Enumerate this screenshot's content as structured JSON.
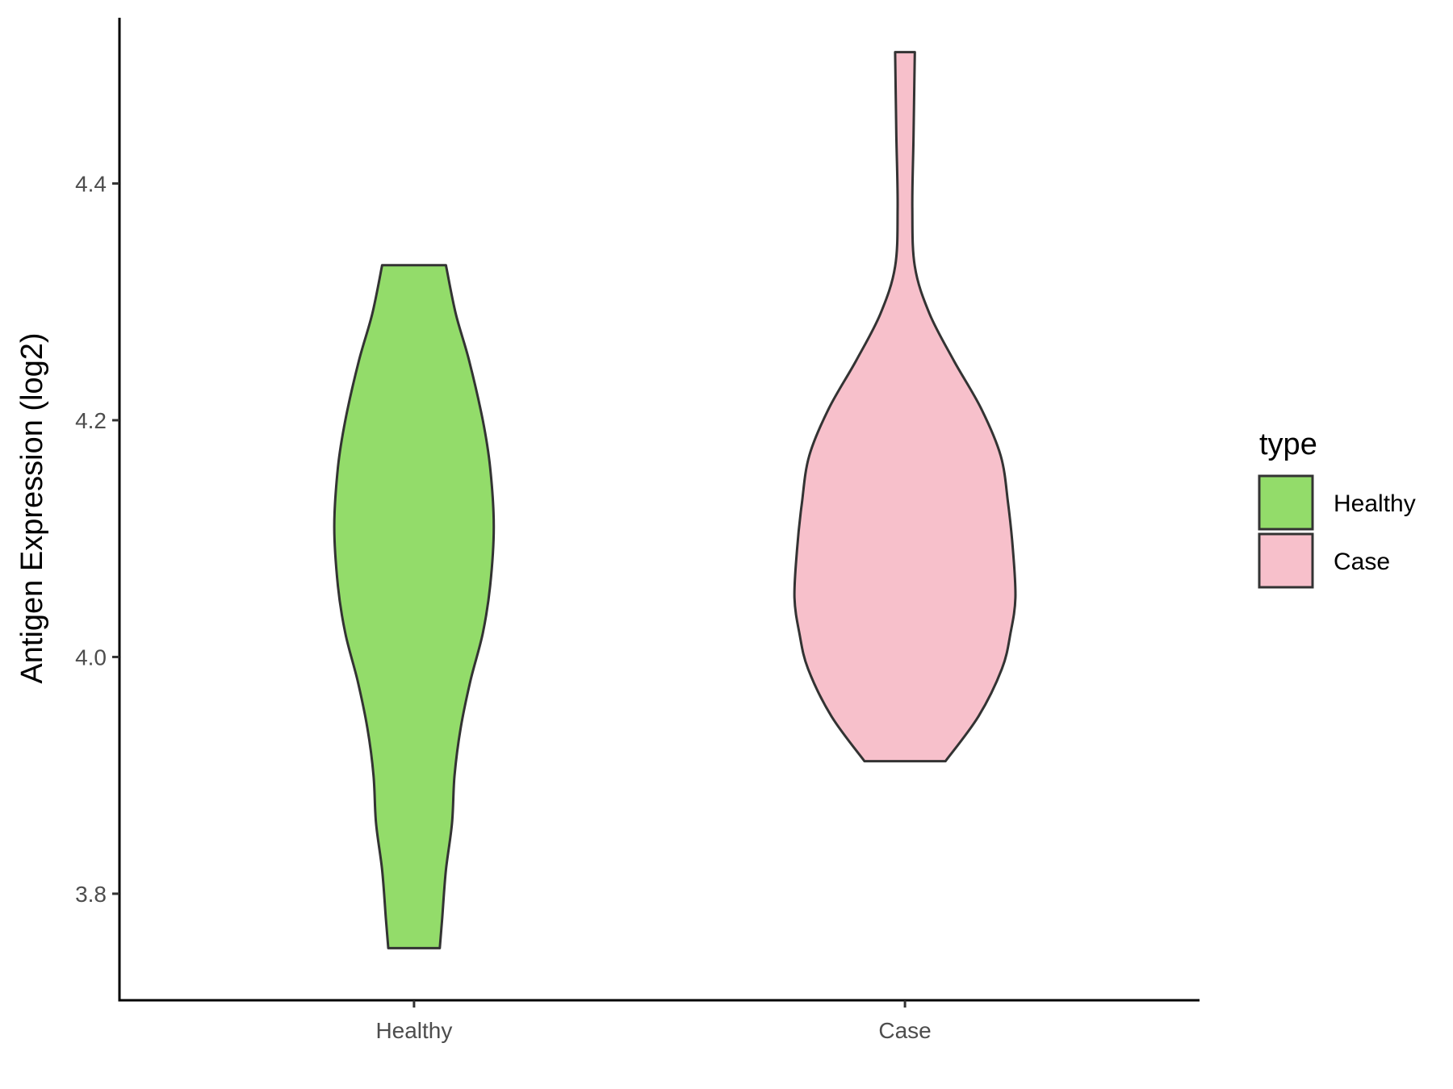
{
  "chart_data": {
    "type": "violin",
    "ylabel": "Antigen Expression (log2)",
    "xlabel": "",
    "ylim": [
      3.71,
      4.54
    ],
    "yticks": [
      3.8,
      4.0,
      4.2,
      4.4
    ],
    "ytick_labels": [
      "3.8",
      "4.0",
      "4.2",
      "4.4"
    ],
    "categories": [
      "Healthy",
      "Case"
    ],
    "legend": {
      "title": "type",
      "position": "right",
      "items": [
        {
          "label": "Healthy",
          "color": "#93dc6a"
        },
        {
          "label": "Case",
          "color": "#f7c0cb"
        }
      ]
    },
    "grid": false,
    "series": [
      {
        "category": "Healthy",
        "color": "#93dc6a",
        "min": 3.754,
        "max": 4.331,
        "density_profile": [
          {
            "y": 3.754,
            "half_width": 0.105
          },
          {
            "y": 3.78,
            "half_width": 0.115
          },
          {
            "y": 3.82,
            "half_width": 0.13
          },
          {
            "y": 3.86,
            "half_width": 0.155
          },
          {
            "y": 3.9,
            "half_width": 0.165
          },
          {
            "y": 3.94,
            "half_width": 0.19
          },
          {
            "y": 3.98,
            "half_width": 0.23
          },
          {
            "y": 4.02,
            "half_width": 0.28
          },
          {
            "y": 4.06,
            "half_width": 0.31
          },
          {
            "y": 4.11,
            "half_width": 0.325
          },
          {
            "y": 4.16,
            "half_width": 0.31
          },
          {
            "y": 4.2,
            "half_width": 0.28
          },
          {
            "y": 4.25,
            "half_width": 0.225
          },
          {
            "y": 4.29,
            "half_width": 0.17
          },
          {
            "y": 4.331,
            "half_width": 0.13
          }
        ]
      },
      {
        "category": "Case",
        "color": "#f7c0cb",
        "min": 3.912,
        "max": 4.511,
        "density_profile": [
          {
            "y": 3.912,
            "half_width": 0.165
          },
          {
            "y": 3.95,
            "half_width": 0.3
          },
          {
            "y": 3.99,
            "half_width": 0.395
          },
          {
            "y": 4.02,
            "half_width": 0.43
          },
          {
            "y": 4.05,
            "half_width": 0.45
          },
          {
            "y": 4.09,
            "half_width": 0.44
          },
          {
            "y": 4.13,
            "half_width": 0.42
          },
          {
            "y": 4.17,
            "half_width": 0.39
          },
          {
            "y": 4.21,
            "half_width": 0.31
          },
          {
            "y": 4.25,
            "half_width": 0.2
          },
          {
            "y": 4.29,
            "half_width": 0.1
          },
          {
            "y": 4.33,
            "half_width": 0.04
          },
          {
            "y": 4.38,
            "half_width": 0.03
          },
          {
            "y": 4.44,
            "half_width": 0.035
          },
          {
            "y": 4.511,
            "half_width": 0.04
          }
        ]
      }
    ]
  }
}
